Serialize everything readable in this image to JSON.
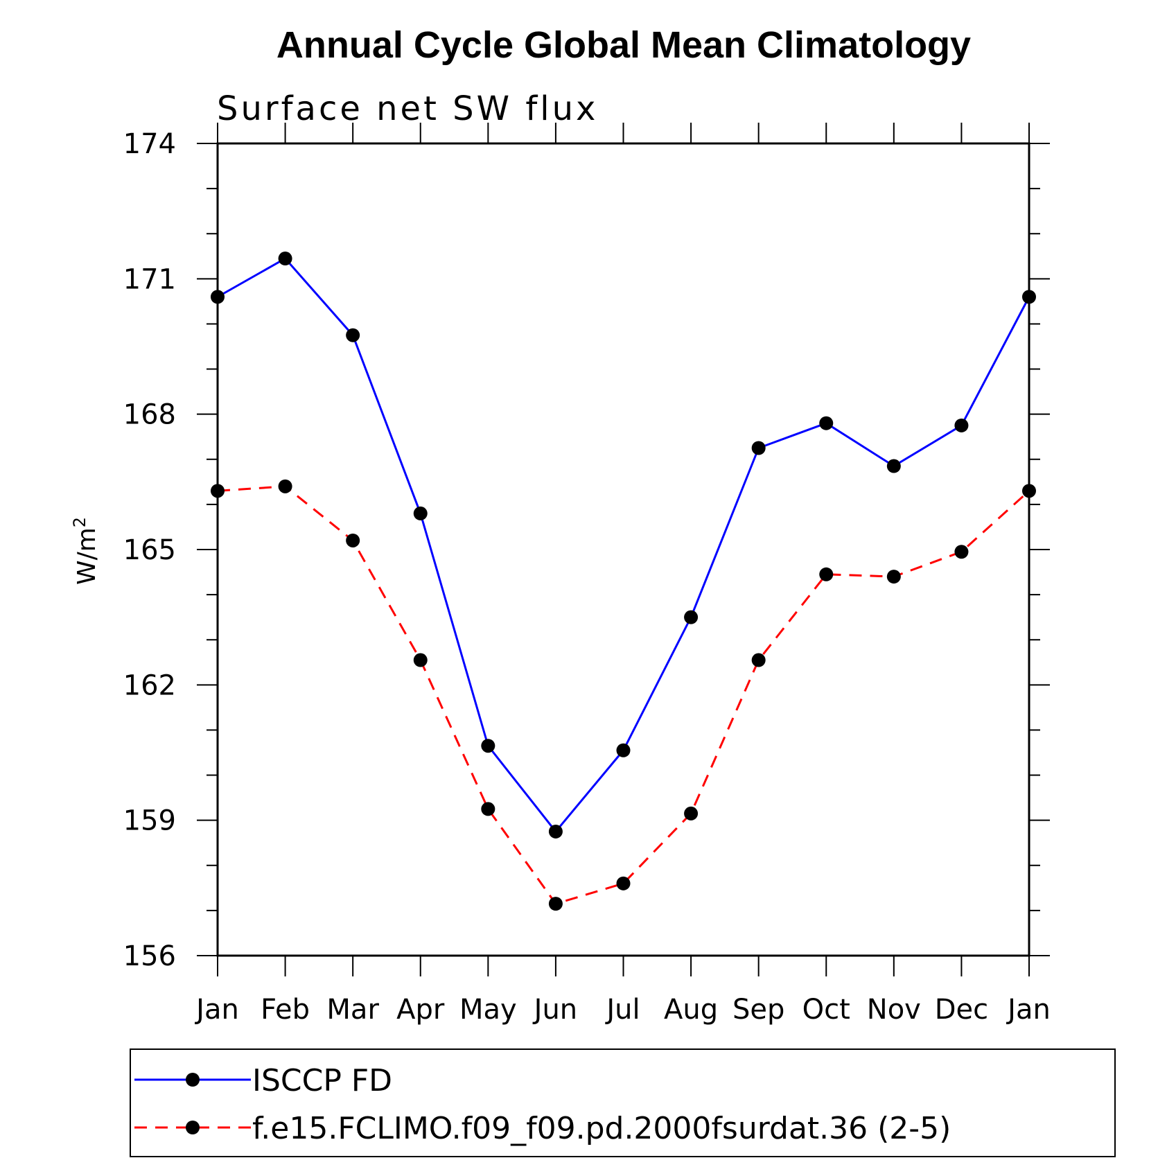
{
  "chart_data": {
    "type": "line",
    "title": "Annual Cycle Global Mean Climatology",
    "subtitle": "Surface net SW flux",
    "ylabel": "W/m",
    "ylabel_sup": "2",
    "xlabel": "",
    "categories": [
      "Jan",
      "Feb",
      "Mar",
      "Apr",
      "May",
      "Jun",
      "Jul",
      "Aug",
      "Sep",
      "Oct",
      "Nov",
      "Dec",
      "Jan"
    ],
    "ylim": [
      156,
      174
    ],
    "yticks": [
      156,
      159,
      162,
      165,
      168,
      171,
      174
    ],
    "series": [
      {
        "name": "ISCCP FD",
        "color": "#0000ff",
        "dash": "solid",
        "values": [
          170.6,
          171.45,
          169.75,
          165.8,
          160.65,
          158.75,
          160.55,
          163.5,
          167.25,
          167.8,
          166.85,
          167.75,
          170.6
        ]
      },
      {
        "name": "f.e15.FCLIMO.f09_f09.pd.2000fsurdat.36 (2-5)",
        "color": "#ff0000",
        "dash": "dashed",
        "values": [
          166.3,
          166.4,
          165.2,
          162.55,
          159.25,
          157.15,
          157.6,
          159.15,
          162.55,
          164.45,
          164.4,
          164.95,
          166.3
        ]
      }
    ],
    "legend_position": "bottom"
  }
}
